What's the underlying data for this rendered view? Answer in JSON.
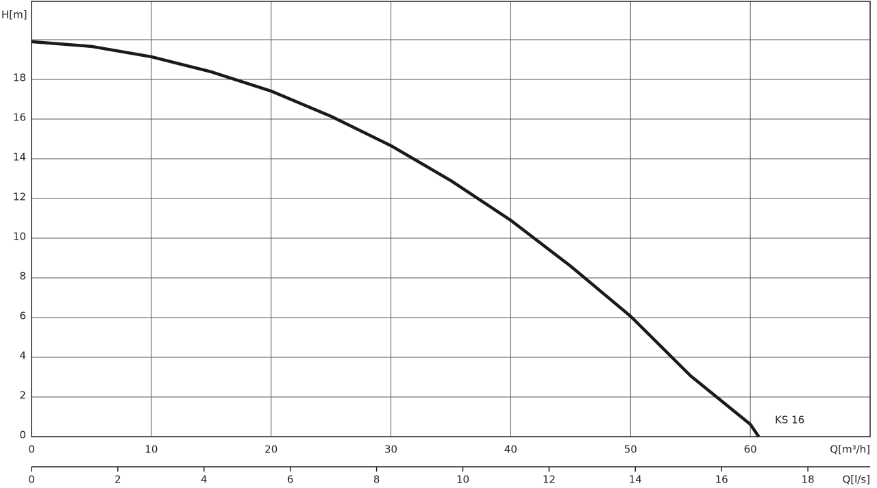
{
  "chart_data": {
    "type": "line",
    "ylabel": "H[m]",
    "xlabel": "Q[m³/h]",
    "x2label": "Q[l/s]",
    "xlim": [
      0,
      70
    ],
    "xticks": [
      0,
      10,
      20,
      30,
      40,
      50,
      60
    ],
    "x2lim": [
      0,
      19.444
    ],
    "x2ticks": [
      0,
      2,
      4,
      6,
      8,
      10,
      12,
      14,
      16,
      18
    ],
    "ylim": [
      0,
      21.93
    ],
    "yticks": [
      0,
      2,
      4,
      6,
      8,
      10,
      12,
      14,
      16,
      18,
      {
        "value": 20,
        "label": null
      }
    ],
    "grid": true,
    "x": [
      0,
      5,
      10,
      15,
      20,
      25,
      30,
      35,
      40,
      45,
      50,
      55,
      60,
      60.7
    ],
    "series": [
      {
        "name": "KS 16",
        "color": "#1a1a1a",
        "values": [
          19.9,
          19.66,
          19.14,
          18.38,
          17.41,
          16.14,
          14.66,
          12.9,
          10.9,
          8.59,
          6.07,
          3.07,
          0.62,
          0
        ]
      }
    ]
  }
}
